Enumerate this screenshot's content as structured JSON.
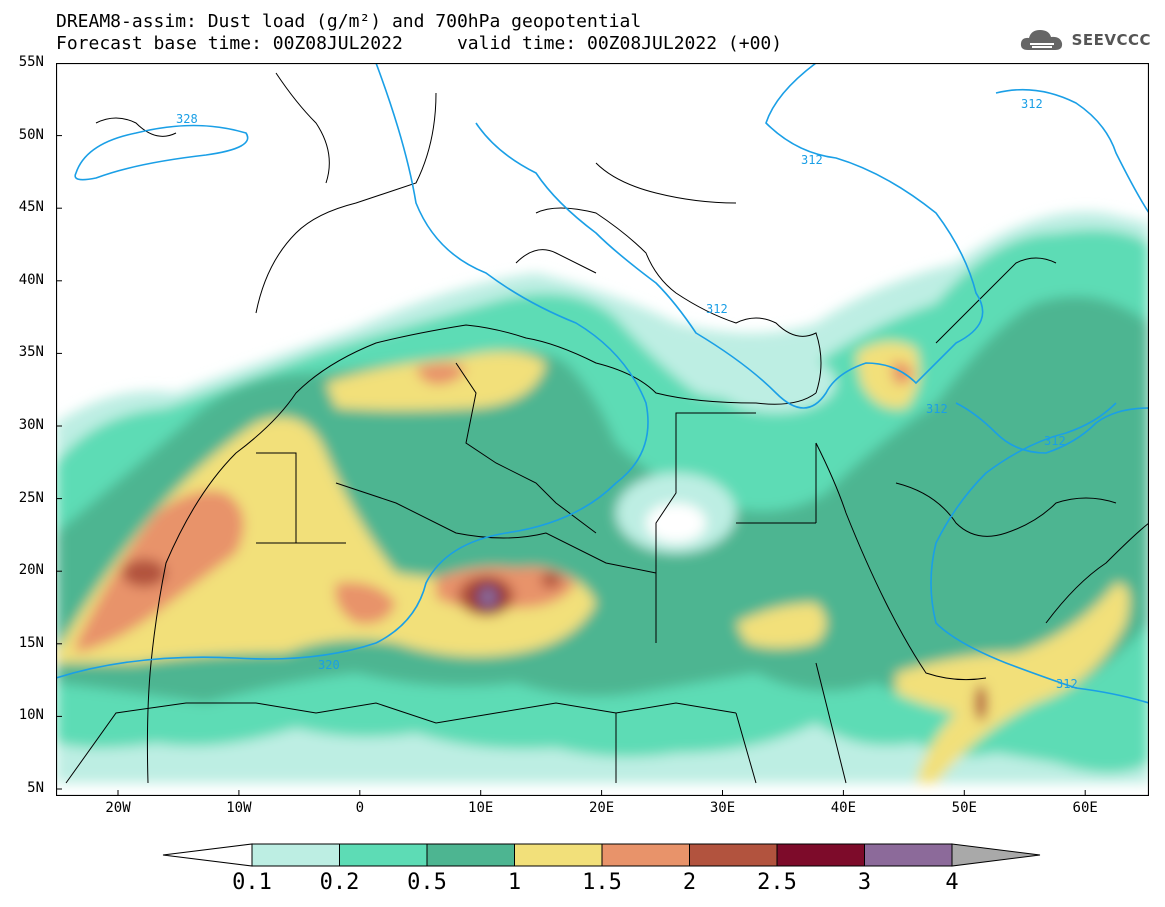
{
  "header": {
    "title_line1": "DREAM8-assim: Dust load (g/m²) and 700hPa geopotential",
    "title_line2": "Forecast base time: 00Z08JUL2022     valid time: 00Z08JUL2022 (+00)",
    "logo_text": "SEEVCCC"
  },
  "map": {
    "lat_labels": [
      "55N",
      "50N",
      "45N",
      "40N",
      "35N",
      "30N",
      "25N",
      "20N",
      "15N",
      "10N",
      "5N"
    ],
    "lon_labels": [
      "20W",
      "10W",
      "0",
      "10E",
      "20E",
      "30E",
      "40E",
      "50E",
      "60E"
    ],
    "contour_labels": [
      "328",
      "312",
      "312",
      "312",
      "312",
      "312",
      "312",
      "320"
    ],
    "ocean_color": "#ffffff"
  },
  "colorbar": {
    "labels": [
      "0.1",
      "0.2",
      "0.5",
      "1",
      "1.5",
      "2",
      "2.5",
      "3",
      "4"
    ],
    "colors": [
      "#ffffff",
      "#bdeee3",
      "#5ddcb5",
      "#4db591",
      "#f2e07a",
      "#e8936a",
      "#b2533e",
      "#7d0b2a",
      "#8c6a9a",
      "#a9a9a9"
    ]
  }
}
